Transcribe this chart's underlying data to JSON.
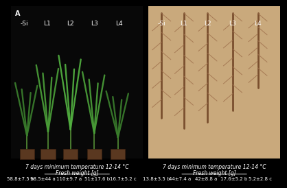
{
  "panel_label": "A",
  "background_color": "#000000",
  "text_color": "#ffffff",
  "left_labels": [
    "-Si",
    "L1",
    "L2",
    "L3",
    "L4"
  ],
  "right_labels": [
    "-Si",
    "L1",
    "L2",
    "L3",
    "L4"
  ],
  "left_temp_text": "7 days minimum temperature 12-14 °C",
  "right_temp_text": "7 days minimum temperature 12-14 °C",
  "left_fw_label": "Fresh weight [g]",
  "right_fw_label": "Fresh weight [g]",
  "left_values": [
    "58.8±7.5 b",
    "98.5±44 a",
    "110±9.7 a",
    "51±17.6 b",
    "16.7±5.2 c"
  ],
  "right_values": [
    "13.8±3.5 b",
    "44±7.4 a",
    "42±8.8 a",
    "17.6±5.2 b",
    "5.2±2.8 c"
  ],
  "label_fontsize": 6.5,
  "temp_fontsize": 5.5,
  "fw_fontsize": 5.5,
  "val_fontsize": 5.0
}
